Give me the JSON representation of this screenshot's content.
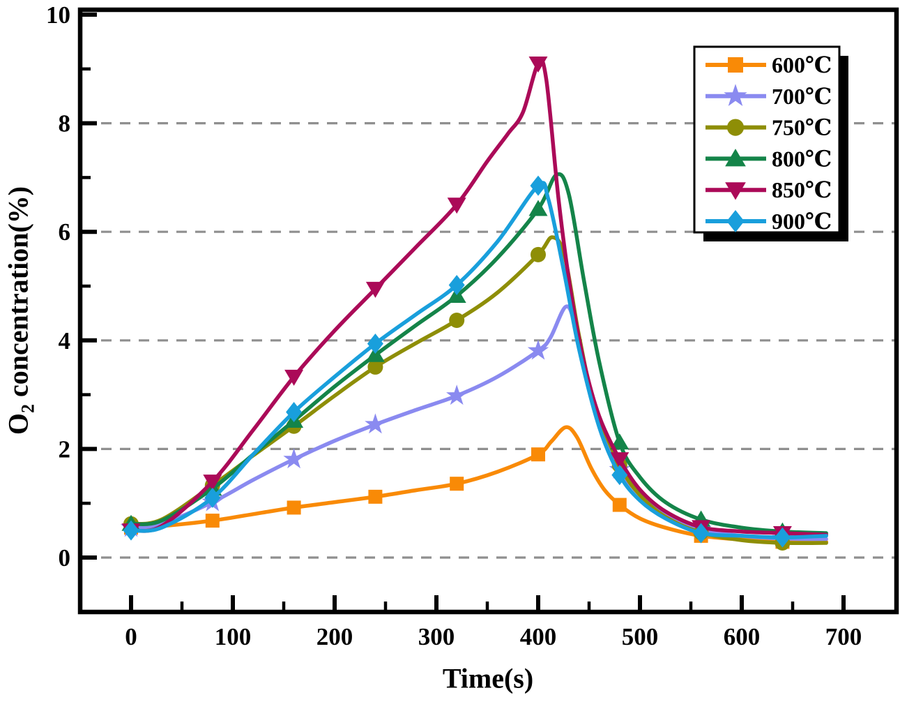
{
  "chart_data": {
    "type": "line",
    "title": "",
    "xlabel": "Time(s)",
    "ylabel": "O2 concentration(%)",
    "ylabel_parts": {
      "prefix": "O",
      "sub": "2",
      "suffix": " concentration(%)"
    },
    "xlim": [
      -50,
      752
    ],
    "ylim": [
      -1.1,
      10
    ],
    "x_ticks": [
      0,
      100,
      200,
      300,
      400,
      500,
      600,
      700
    ],
    "x_minor_ticks": [
      50,
      150,
      250,
      350,
      450,
      550,
      650
    ],
    "y_ticks": [
      0,
      2,
      4,
      6,
      8,
      10
    ],
    "y_minor_ticks": [
      1,
      3,
      5,
      7,
      9
    ],
    "grid_y_values": [
      0,
      2,
      4,
      6,
      8
    ],
    "grid_color": "#8f8f8f",
    "legend_position": "upper right",
    "marker_x": [
      0,
      80,
      160,
      240,
      320,
      400,
      480,
      560,
      640
    ],
    "series": [
      {
        "name": "600℃",
        "color": "#F98A06",
        "marker": "square",
        "marker_values": [
          0.55,
          0.68,
          0.92,
          1.12,
          1.36,
          1.9,
          0.97,
          0.4,
          0.29
        ],
        "points": [
          [
            0,
            0.55
          ],
          [
            30,
            0.58
          ],
          [
            80,
            0.68
          ],
          [
            120,
            0.8
          ],
          [
            160,
            0.92
          ],
          [
            200,
            1.02
          ],
          [
            240,
            1.12
          ],
          [
            280,
            1.24
          ],
          [
            320,
            1.36
          ],
          [
            360,
            1.58
          ],
          [
            400,
            1.9
          ],
          [
            413,
            2.14
          ],
          [
            427,
            2.4
          ],
          [
            438,
            2.22
          ],
          [
            452,
            1.65
          ],
          [
            465,
            1.25
          ],
          [
            480,
            0.97
          ],
          [
            500,
            0.72
          ],
          [
            525,
            0.55
          ],
          [
            560,
            0.4
          ],
          [
            600,
            0.33
          ],
          [
            640,
            0.29
          ],
          [
            683,
            0.29
          ]
        ]
      },
      {
        "name": "700℃",
        "color": "#8A8AF0",
        "marker": "star",
        "marker_values": [
          0.55,
          1.02,
          1.81,
          2.45,
          2.98,
          3.81,
          1.62,
          0.52,
          0.35
        ],
        "points": [
          [
            0,
            0.55
          ],
          [
            30,
            0.62
          ],
          [
            80,
            1.02
          ],
          [
            120,
            1.43
          ],
          [
            160,
            1.81
          ],
          [
            200,
            2.15
          ],
          [
            240,
            2.45
          ],
          [
            280,
            2.72
          ],
          [
            320,
            2.98
          ],
          [
            360,
            3.33
          ],
          [
            400,
            3.81
          ],
          [
            412,
            4.05
          ],
          [
            427,
            4.62
          ],
          [
            436,
            4.3
          ],
          [
            448,
            3.3
          ],
          [
            462,
            2.3
          ],
          [
            480,
            1.62
          ],
          [
            500,
            1.15
          ],
          [
            525,
            0.8
          ],
          [
            560,
            0.52
          ],
          [
            600,
            0.4
          ],
          [
            640,
            0.35
          ],
          [
            683,
            0.34
          ]
        ]
      },
      {
        "name": "750℃",
        "color": "#8E8E06",
        "marker": "circle",
        "marker_values": [
          0.62,
          1.33,
          2.42,
          3.51,
          4.37,
          5.58,
          1.7,
          0.46,
          0.27
        ],
        "points": [
          [
            0,
            0.62
          ],
          [
            30,
            0.7
          ],
          [
            80,
            1.33
          ],
          [
            120,
            1.88
          ],
          [
            160,
            2.42
          ],
          [
            200,
            2.98
          ],
          [
            240,
            3.51
          ],
          [
            280,
            3.95
          ],
          [
            320,
            4.37
          ],
          [
            360,
            4.88
          ],
          [
            400,
            5.58
          ],
          [
            414,
            5.9
          ],
          [
            426,
            5.55
          ],
          [
            440,
            4.1
          ],
          [
            455,
            2.85
          ],
          [
            480,
            1.7
          ],
          [
            500,
            1.15
          ],
          [
            525,
            0.75
          ],
          [
            560,
            0.46
          ],
          [
            600,
            0.32
          ],
          [
            640,
            0.27
          ],
          [
            683,
            0.27
          ]
        ]
      },
      {
        "name": "800℃",
        "color": "#148449",
        "marker": "triangle-up",
        "marker_values": [
          0.62,
          1.27,
          2.52,
          3.73,
          4.82,
          6.42,
          2.12,
          0.7,
          0.48
        ],
        "points": [
          [
            0,
            0.62
          ],
          [
            30,
            0.68
          ],
          [
            80,
            1.27
          ],
          [
            120,
            1.9
          ],
          [
            160,
            2.52
          ],
          [
            200,
            3.15
          ],
          [
            240,
            3.73
          ],
          [
            280,
            4.28
          ],
          [
            320,
            4.82
          ],
          [
            360,
            5.52
          ],
          [
            400,
            6.42
          ],
          [
            418,
            7.05
          ],
          [
            430,
            6.7
          ],
          [
            445,
            5.1
          ],
          [
            460,
            3.6
          ],
          [
            480,
            2.12
          ],
          [
            500,
            1.48
          ],
          [
            525,
            1.02
          ],
          [
            560,
            0.7
          ],
          [
            600,
            0.55
          ],
          [
            640,
            0.48
          ],
          [
            683,
            0.45
          ]
        ]
      },
      {
        "name": "850℃",
        "color": "#AB0A58",
        "marker": "triangle-down",
        "marker_values": [
          0.5,
          1.4,
          3.33,
          4.95,
          6.5,
          9.1,
          1.81,
          0.56,
          0.45
        ],
        "points": [
          [
            0,
            0.5
          ],
          [
            30,
            0.58
          ],
          [
            80,
            1.4
          ],
          [
            120,
            2.35
          ],
          [
            160,
            3.33
          ],
          [
            200,
            4.18
          ],
          [
            240,
            4.95
          ],
          [
            280,
            5.72
          ],
          [
            320,
            6.5
          ],
          [
            350,
            7.3
          ],
          [
            370,
            7.8
          ],
          [
            385,
            8.2
          ],
          [
            400,
            9.1
          ],
          [
            408,
            8.8
          ],
          [
            420,
            6.6
          ],
          [
            432,
            4.9
          ],
          [
            445,
            3.6
          ],
          [
            460,
            2.6
          ],
          [
            480,
            1.81
          ],
          [
            500,
            1.25
          ],
          [
            525,
            0.85
          ],
          [
            560,
            0.56
          ],
          [
            600,
            0.48
          ],
          [
            640,
            0.45
          ],
          [
            683,
            0.42
          ]
        ]
      },
      {
        "name": "900℃",
        "color": "#199FDC",
        "marker": "diamond",
        "marker_values": [
          0.5,
          1.1,
          2.68,
          3.94,
          5.02,
          6.85,
          1.52,
          0.45,
          0.37
        ],
        "points": [
          [
            0,
            0.5
          ],
          [
            30,
            0.55
          ],
          [
            80,
            1.1
          ],
          [
            120,
            1.9
          ],
          [
            160,
            2.68
          ],
          [
            200,
            3.33
          ],
          [
            240,
            3.94
          ],
          [
            280,
            4.48
          ],
          [
            320,
            5.02
          ],
          [
            360,
            5.82
          ],
          [
            400,
            6.85
          ],
          [
            410,
            6.6
          ],
          [
            425,
            5.3
          ],
          [
            440,
            3.85
          ],
          [
            460,
            2.4
          ],
          [
            480,
            1.52
          ],
          [
            500,
            1.05
          ],
          [
            525,
            0.72
          ],
          [
            560,
            0.45
          ],
          [
            600,
            0.4
          ],
          [
            640,
            0.37
          ],
          [
            683,
            0.4
          ]
        ]
      }
    ],
    "legend": {
      "entries": [
        {
          "label": "600℃"
        },
        {
          "label": "700℃"
        },
        {
          "label": "750℃"
        },
        {
          "label": "800℃"
        },
        {
          "label": "850℃"
        },
        {
          "label": "900℃"
        }
      ]
    }
  }
}
